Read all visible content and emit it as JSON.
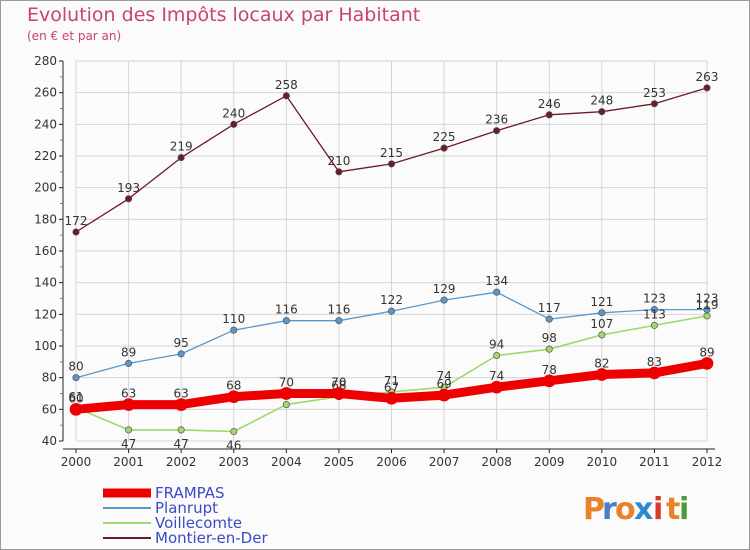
{
  "title": "Evolution des Impôts locaux par Habitant",
  "subtitle": "(en € et par an)",
  "logo": {
    "letters": [
      "P",
      "r",
      "o",
      "x",
      "i",
      "t",
      "i"
    ],
    "colors": [
      "#e8832a",
      "#4a7cc9",
      "#e8832a",
      "#2e8ad0",
      "#d43b2a",
      "#e8832a",
      "#4a9c3a"
    ]
  },
  "chart_data": {
    "type": "line",
    "x": [
      "2000",
      "2001",
      "2002",
      "2003",
      "2004",
      "2005",
      "2006",
      "2007",
      "2008",
      "2009",
      "2010",
      "2011",
      "2012"
    ],
    "ylim": [
      40,
      280
    ],
    "yticks": [
      40,
      60,
      80,
      100,
      120,
      140,
      160,
      180,
      200,
      220,
      240,
      260,
      280
    ],
    "grid": true,
    "legend_position": "bottom-left",
    "series": [
      {
        "name": "Montier-en-Der",
        "color": "#6b1c26",
        "width": 1.3,
        "values": [
          172,
          193,
          219,
          240,
          258,
          210,
          215,
          225,
          236,
          246,
          248,
          253,
          263
        ],
        "labels": [
          "172",
          "193",
          "219",
          "240",
          "258",
          "210",
          "215",
          "225",
          "236",
          "246",
          "248",
          "253",
          "263"
        ]
      },
      {
        "name": "Planrupt",
        "color": "#5a98cc",
        "width": 1.3,
        "values": [
          80,
          89,
          95,
          110,
          116,
          116,
          122,
          129,
          134,
          117,
          121,
          123,
          123
        ],
        "labels": [
          "80",
          "89",
          "95",
          "110",
          "116",
          "116",
          "122",
          "129",
          "134",
          "117",
          "121",
          "123",
          "123"
        ]
      },
      {
        "name": "Voillecomte",
        "color": "#9fd86c",
        "width": 1.6,
        "values": [
          61,
          47,
          47,
          46,
          63,
          68,
          71,
          74,
          94,
          98,
          107,
          113,
          119
        ],
        "labels": [
          "61",
          "47",
          "47",
          "46",
          "63",
          "68",
          "71",
          "74",
          "94",
          "98",
          "107",
          "113",
          "119"
        ]
      },
      {
        "name": "FRAMPAS",
        "color": "#ee0000",
        "width": 9,
        "values": [
          60,
          63,
          63,
          68,
          70,
          70,
          67,
          69,
          74,
          78,
          82,
          83,
          89
        ],
        "labels": [
          "60",
          "63",
          "63",
          "68",
          "70",
          "70",
          "67",
          "69",
          "74",
          "78",
          "82",
          "83",
          "89"
        ]
      }
    ]
  }
}
